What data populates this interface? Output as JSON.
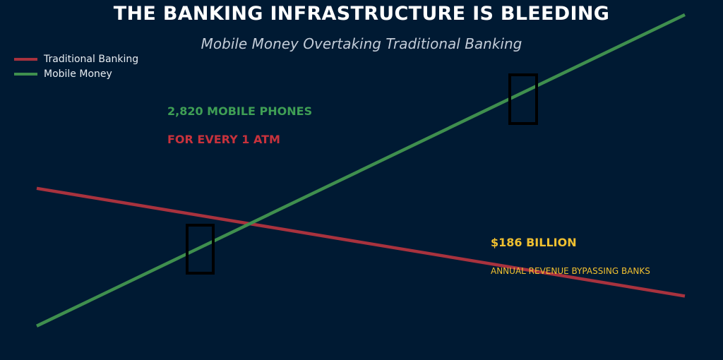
{
  "chart_data": {
    "type": "line",
    "title": "THE BANKING INFRASTRUCTURE IS BLEEDING",
    "subtitle": "Mobile Money Overtaking Traditional Banking",
    "xlabel": "",
    "ylabel": "",
    "grid": false,
    "legend_position": "top-left",
    "x": [
      0,
      1
    ],
    "series": [
      {
        "name": "Traditional Banking",
        "color": "#a8323e",
        "values": [
          0.55,
          0.19
        ]
      },
      {
        "name": "Mobile Money",
        "color": "#3f8f4e",
        "values": [
          0.09,
          1.13
        ]
      }
    ],
    "annotations": [
      {
        "text": "2,820 MOBILE PHONES",
        "color": "#3f9f55"
      },
      {
        "text": "FOR EVERY 1 ATM",
        "color": "#c8323c"
      },
      {
        "text": "$186 BILLION",
        "color": "#f0c030"
      },
      {
        "text": "ANNUAL REVENUE BYPASSING BANKS",
        "color": "#f0c030"
      }
    ]
  }
}
